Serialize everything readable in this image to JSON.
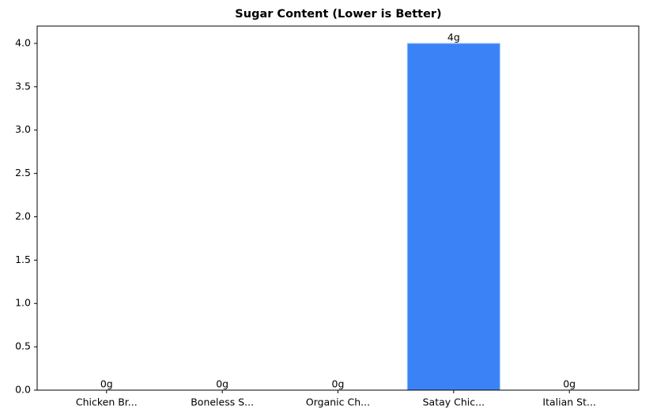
{
  "chart_data": {
    "type": "bar",
    "title": "Sugar Content (Lower is Better)",
    "categories": [
      "Chicken Br...",
      "Boneless S...",
      "Organic Ch...",
      "Satay Chic...",
      "Italian St..."
    ],
    "values": [
      0,
      0,
      0,
      4,
      0
    ],
    "value_labels": [
      "0g",
      "0g",
      "0g",
      "4g",
      "0g"
    ],
    "color": "#3b82f6",
    "ylim": [
      0,
      4.2
    ],
    "yticks": [
      {
        "value": 0,
        "label": "0.0"
      },
      0.5,
      {
        "value": 1,
        "label": "1.0"
      },
      1.5,
      {
        "value": 2,
        "label": "2.0"
      },
      2.5,
      {
        "value": 3,
        "label": "3.0"
      },
      3.5,
      {
        "value": 4,
        "label": "4.0"
      }
    ],
    "grid": false
  }
}
